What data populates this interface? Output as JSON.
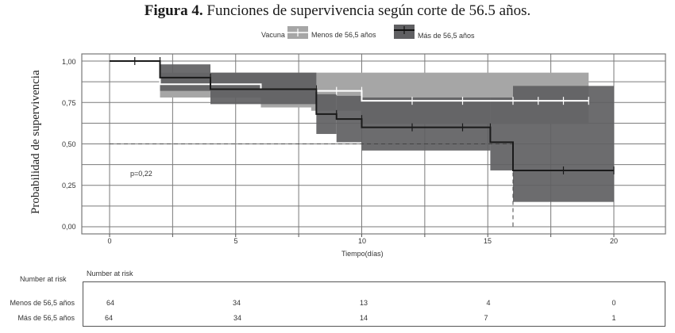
{
  "figure": {
    "title_bold": "Figura 4.",
    "title_rest": " Funciones de supervivencia según corte de 56.5 años."
  },
  "legend": {
    "title": "Vacuna",
    "entries": [
      {
        "label": "Menos de 56,5 años",
        "fill": "#a6a6a6",
        "line": "#ffffff"
      },
      {
        "label": "Más de 56,5 años",
        "fill": "#5f5f62",
        "line": "#1a1a1a"
      }
    ]
  },
  "axes": {
    "ylabel": "Probabilidad de supervivencia",
    "xlabel": "Tiempo(días)",
    "yticks": [
      "1,00",
      "0,75",
      "0,50",
      "0,25",
      "0,00"
    ],
    "xticks": [
      "0",
      "5",
      "10",
      "15",
      "20"
    ]
  },
  "annotation": {
    "pvalue": "p=0,22"
  },
  "risk_table": {
    "outer_label": "Number at risk",
    "inner_label": "Number at risk",
    "rows": [
      {
        "label": "Menos de 56,5 años",
        "values": [
          "64",
          "34",
          "13",
          "4",
          "0"
        ]
      },
      {
        "label": "Más de 56,5 años",
        "values": [
          "64",
          "34",
          "14",
          "7",
          "1"
        ]
      }
    ]
  },
  "chart_data": {
    "type": "line",
    "subtype": "kaplan-meier step survival curves with confidence bands",
    "title": "Figura 4. Funciones de supervivencia según corte de 56.5 años.",
    "xlabel": "Tiempo(días)",
    "ylabel": "Probabilidad de supervivencia",
    "xlim": [
      -1,
      22
    ],
    "ylim": [
      -0.04,
      1.04
    ],
    "xticks": [
      0,
      5,
      10,
      15,
      20
    ],
    "yticks": [
      0.0,
      0.25,
      0.5,
      0.75,
      1.0
    ],
    "grid": true,
    "legend_title": "Vacuna",
    "legend_position": "top",
    "median_reference": {
      "y": 0.5,
      "x_median_group2": 16,
      "style": "dashed"
    },
    "annotations": [
      "p=0,22"
    ],
    "series": [
      {
        "name": "Menos de 56,5 años",
        "line_color": "#ffffff",
        "band_color": "#a6a6a6",
        "steps": [
          {
            "x_start": 0,
            "x_end": 2,
            "y": 1.0
          },
          {
            "x_start": 2,
            "x_end": 6,
            "y": 0.86
          },
          {
            "x_start": 6,
            "x_end": 8.2,
            "y": 0.83
          },
          {
            "x_start": 8.2,
            "x_end": 10,
            "y": 0.82
          },
          {
            "x_start": 10,
            "x_end": 19,
            "y": 0.76
          }
        ],
        "censor_x": [
          2,
          8.2,
          9,
          10,
          12,
          14,
          16,
          17,
          18,
          19
        ],
        "ci": [
          {
            "x_start": 2,
            "x_end": 6,
            "lower": 0.78,
            "upper": 0.93
          },
          {
            "x_start": 6,
            "x_end": 8,
            "lower": 0.72,
            "upper": 0.93
          },
          {
            "x_start": 8,
            "x_end": 10,
            "lower": 0.7,
            "upper": 0.93
          },
          {
            "x_start": 10,
            "x_end": 19,
            "lower": 0.62,
            "upper": 0.93
          }
        ]
      },
      {
        "name": "Más de 56,5 años",
        "line_color": "#1a1a1a",
        "band_color": "#5f5f62",
        "steps": [
          {
            "x_start": 0,
            "x_end": 2,
            "y": 1.0
          },
          {
            "x_start": 2,
            "x_end": 4,
            "y": 0.9
          },
          {
            "x_start": 4,
            "x_end": 8.2,
            "y": 0.83
          },
          {
            "x_start": 8.2,
            "x_end": 9,
            "y": 0.68
          },
          {
            "x_start": 9,
            "x_end": 10,
            "y": 0.65
          },
          {
            "x_start": 10,
            "x_end": 15.1,
            "y": 0.6
          },
          {
            "x_start": 15.1,
            "x_end": 16,
            "y": 0.51
          },
          {
            "x_start": 16,
            "x_end": 20,
            "y": 0.34
          }
        ],
        "censor_x": [
          1,
          2,
          4,
          8.2,
          9,
          10,
          12,
          14,
          15.1,
          18,
          20
        ],
        "ci": [
          {
            "x_start": 2,
            "x_end": 4,
            "lower": 0.82,
            "upper": 0.98
          },
          {
            "x_start": 4,
            "x_end": 8.2,
            "lower": 0.74,
            "upper": 0.93
          },
          {
            "x_start": 8.2,
            "x_end": 9,
            "lower": 0.56,
            "upper": 0.8
          },
          {
            "x_start": 9,
            "x_end": 10,
            "lower": 0.51,
            "upper": 0.79
          },
          {
            "x_start": 10,
            "x_end": 15.1,
            "lower": 0.46,
            "upper": 0.78
          },
          {
            "x_start": 15.1,
            "x_end": 16,
            "lower": 0.34,
            "upper": 0.78
          },
          {
            "x_start": 16,
            "x_end": 20,
            "lower": 0.15,
            "upper": 0.85
          }
        ]
      }
    ],
    "risk_table": {
      "times": [
        0,
        5,
        10,
        15,
        20
      ],
      "Menos de 56,5 años": [
        64,
        34,
        13,
        4,
        0
      ],
      "Más de 56,5 años": [
        64,
        34,
        14,
        7,
        1
      ]
    }
  }
}
